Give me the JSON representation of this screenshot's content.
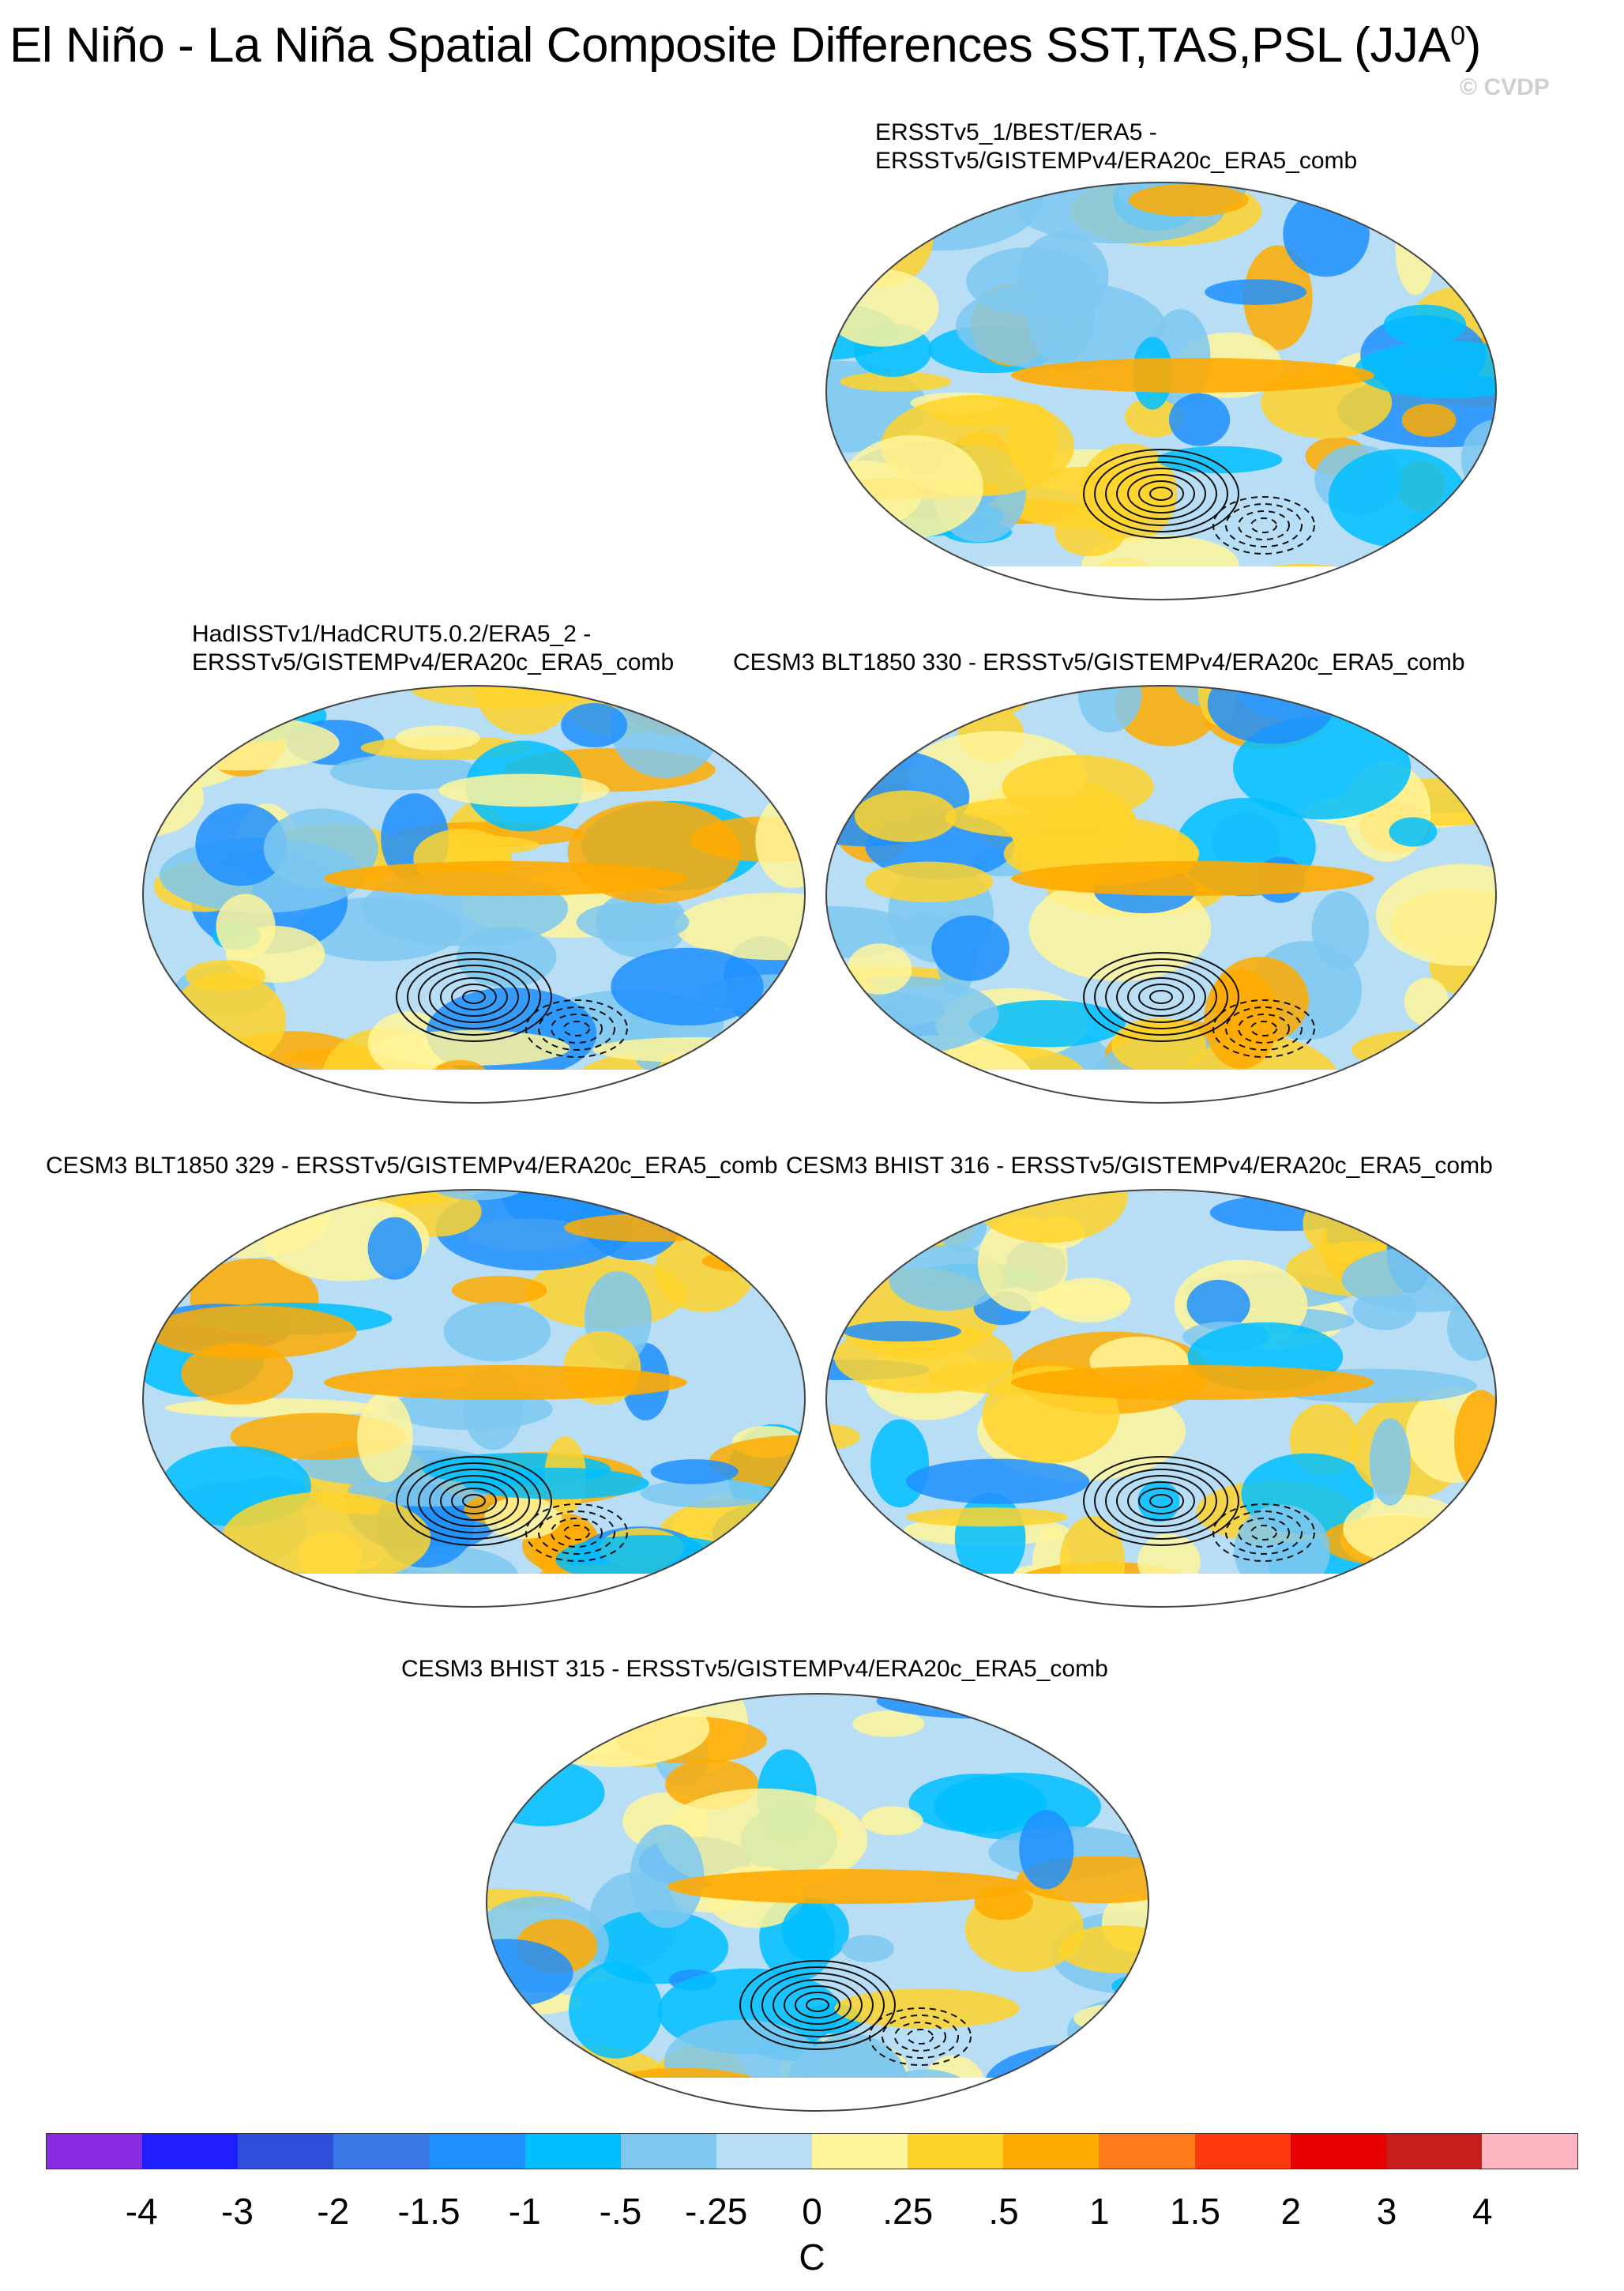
{
  "title": "El Niño - La Niña Spatial Composite Differences SST,TAS,PSL (JJA",
  "title_superscript": "0",
  "title_close": ")",
  "credit": "© CVDP",
  "panels": [
    {
      "label": "ERSSTv5_1/BEST/ERA5 -\nERSSTv5/GISTEMPv4/ERA20c_ERA5_comb"
    },
    {
      "label": "HadISSTv1/HadCRUT5.0.2/ERA5_2 -\nERSSTv5/GISTEMPv4/ERA20c_ERA5_comb"
    },
    {
      "label": "CESM3 BLT1850 330 - ERSSTv5/GISTEMPv4/ERA20c_ERA5_comb"
    },
    {
      "label": "CESM3 BLT1850 329 - ERSSTv5/GISTEMPv4/ERA20c_ERA5_comb"
    },
    {
      "label": "CESM3 BHIST 316 - ERSSTv5/GISTEMPv4/ERA20c_ERA5_comb"
    },
    {
      "label": "CESM3 BHIST 315 - ERSSTv5/GISTEMPv4/ERA20c_ERA5_comb"
    }
  ],
  "colorbar": {
    "unit": "C",
    "ticks": [
      "-4",
      "-3",
      "-2",
      "-1.5",
      "-1",
      "-.5",
      "-.25",
      "0",
      ".25",
      ".5",
      "1",
      "1.5",
      "2",
      "3",
      "4"
    ],
    "colors": [
      "#8a2be2",
      "#1f1fff",
      "#2f4fd8",
      "#3a78e8",
      "#1e90ff",
      "#00bfff",
      "#7ec8f0",
      "#b7def4",
      "#fff59a",
      "#ffd42a",
      "#ffaa00",
      "#ff7a1a",
      "#ff3a10",
      "#e60000",
      "#c81e1e",
      "#ffb6c1"
    ]
  }
}
